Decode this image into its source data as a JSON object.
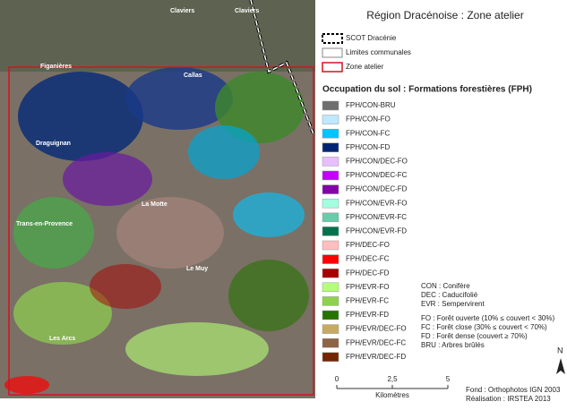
{
  "title": "Région Dracénoise : Zone atelier",
  "boundaries": [
    "SCOT Dracénie",
    "Limites communales",
    "Zone atelier"
  ],
  "section_title": "Occupation du sol : Formations forestières (FPH)",
  "classes": [
    {
      "label": "FPH/CON-BRU",
      "color": "#6e6e6e"
    },
    {
      "label": "FPH/CON-FO",
      "color": "#bee8ff"
    },
    {
      "label": "FPH/CON-FC",
      "color": "#00c5ff"
    },
    {
      "label": "FPH/CON-FD",
      "color": "#002673"
    },
    {
      "label": "FPH/CON/DEC-FO",
      "color": "#e8beff"
    },
    {
      "label": "FPH/CON/DEC-FC",
      "color": "#c500ff"
    },
    {
      "label": "FPH/CON/DEC-FD",
      "color": "#8400a8"
    },
    {
      "label": "FPH/CON/EVR-FO",
      "color": "#a3ffe0"
    },
    {
      "label": "FPH/CON/EVR-FC",
      "color": "#66cdab"
    },
    {
      "label": "FPH/CON/EVR-FD",
      "color": "#00734c"
    },
    {
      "label": "FPH/DEC-FO",
      "color": "#ffbebe"
    },
    {
      "label": "FPH/DEC-FC",
      "color": "#ff0000"
    },
    {
      "label": "FPH/DEC-FD",
      "color": "#a80000"
    },
    {
      "label": "FPH/EVR-FO",
      "color": "#b4ff73"
    },
    {
      "label": "FPH/EVR-FC",
      "color": "#8fd14f"
    },
    {
      "label": "FPH/EVR-FD",
      "color": "#267300"
    },
    {
      "label": "FPH/EVR/DEC-FO",
      "color": "#c8a964"
    },
    {
      "label": "FPH/EVR/DEC-FC",
      "color": "#8c6446"
    },
    {
      "label": "FPH/EVR/DEC-FD",
      "color": "#732600"
    }
  ],
  "abbreviations": [
    "CON : Conifère",
    "DEC : Caducifolié",
    "EVR : Sempervirent"
  ],
  "densities": [
    "FO : Forêt ouverte (10% ≤ couvert < 30%)",
    "FC : Forêt close (30% ≤ couvert < 70%)",
    "FD : Forêt dense (couvert ≥ 70%)",
    "BRU : Arbres brûlés"
  ],
  "scale": {
    "ticks": [
      "0",
      "2,5",
      "5"
    ],
    "unit": "Kilomètres"
  },
  "north": "N",
  "credits": [
    "Fond : Orthophotos IGN 2003",
    "Réalisation : IRSTEA 2013"
  ],
  "places": [
    "Claviers",
    "Claviers",
    "Figanières",
    "Callas",
    "Draguignan",
    "La Motte",
    "Trans-en-Provence",
    "Le Muy",
    "Les Arcs"
  ]
}
